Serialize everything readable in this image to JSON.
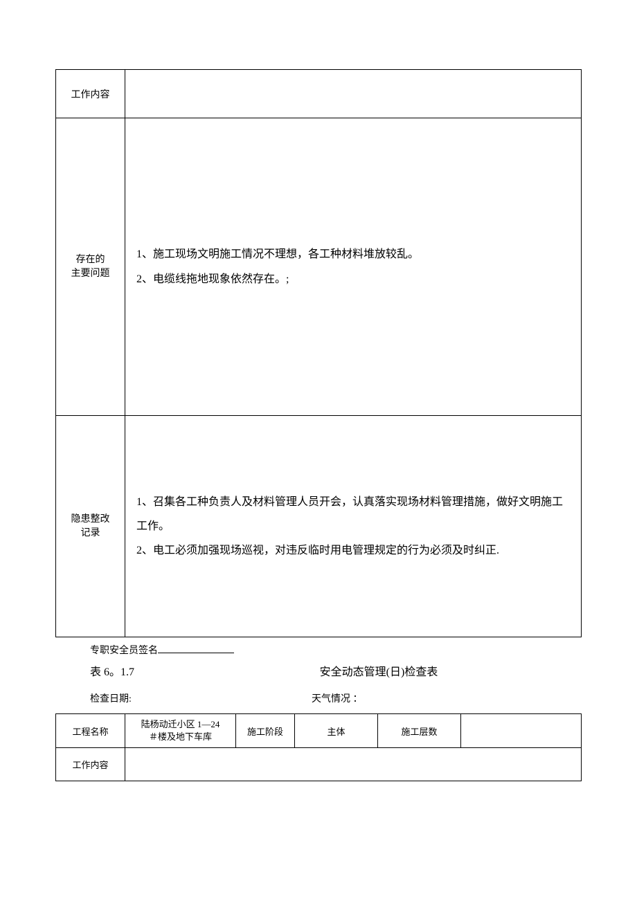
{
  "table1": {
    "rows": {
      "work": {
        "label": "工作内容",
        "value": ""
      },
      "problems": {
        "label_line1": "存在的",
        "label_line2": "主要问题",
        "line1": "1、施工现场文明施工情况不理想，各工种材料堆放较乱。",
        "line2": "2、电缆线拖地现象依然存在。;"
      },
      "records": {
        "label_line1": "隐患整改",
        "label_line2": "记录",
        "line1": "1、召集各工种负责人及材料管理人员开会，认真落实现场材料管理措施，做好文明施工工作。",
        "line2": "2、电工必须加强现场巡视，对违反临时用电管理规定的行为必须及时纠正."
      }
    }
  },
  "signature": {
    "label": "专职安全员签名"
  },
  "heading": {
    "table_no": "表 6。1.7",
    "title": "安全动态管理(日)检查表"
  },
  "meta": {
    "check_date_label": "检查日期:",
    "weather_label": "天气情况 ："
  },
  "table2": {
    "header": {
      "project_name_label": "工程名称",
      "project_name_value_line1": "陆杨动迁小区 1—24",
      "project_name_value_line2": "＃楼及地下车库",
      "phase_label": "施工阶段",
      "phase_value": "主体",
      "floors_label": "施工层数",
      "floors_value": ""
    },
    "work": {
      "label": "工作内容",
      "value": ""
    }
  },
  "style": {
    "border_color": "#000000",
    "background": "#ffffff",
    "text_color": "#000000",
    "label_fontsize": 14,
    "content_fontsize": 16,
    "title_fontsize": 16,
    "meta_fontsize": 14
  }
}
